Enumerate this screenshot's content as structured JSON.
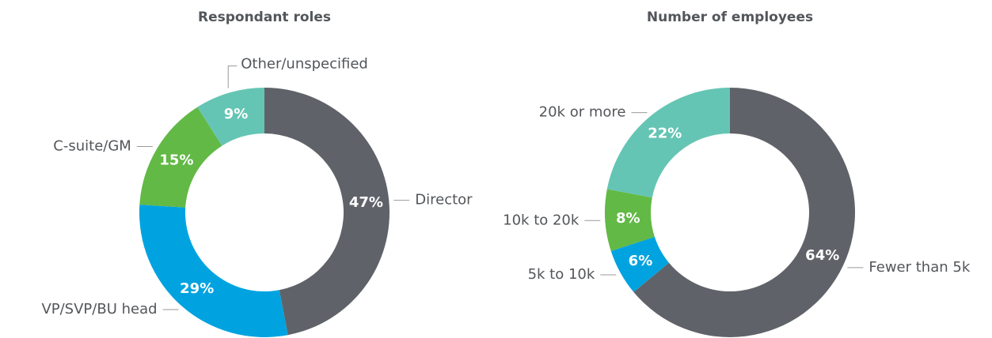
{
  "chart_data": [
    {
      "type": "donut",
      "title": "Respondant roles",
      "categories": [
        "Director",
        "VP/SVP/BU head",
        "C-suite/GM",
        "Other/unspecified"
      ],
      "values": [
        47,
        29,
        15,
        9
      ],
      "value_labels": [
        "47%",
        "29%",
        "15%",
        "9%"
      ],
      "colors": [
        "#5f6369",
        "#00a3e0",
        "#62b946",
        "#65c5b4"
      ]
    },
    {
      "type": "donut",
      "title": "Number of employees",
      "categories": [
        "Fewer than 5k",
        "5k to 10k",
        "10k to 20k",
        "20k or more"
      ],
      "values": [
        64,
        6,
        8,
        22
      ],
      "value_labels": [
        "64%",
        "6%",
        "8%",
        "22%"
      ],
      "colors": [
        "#5f6369",
        "#00a3e0",
        "#62b946",
        "#65c5b4"
      ]
    }
  ]
}
